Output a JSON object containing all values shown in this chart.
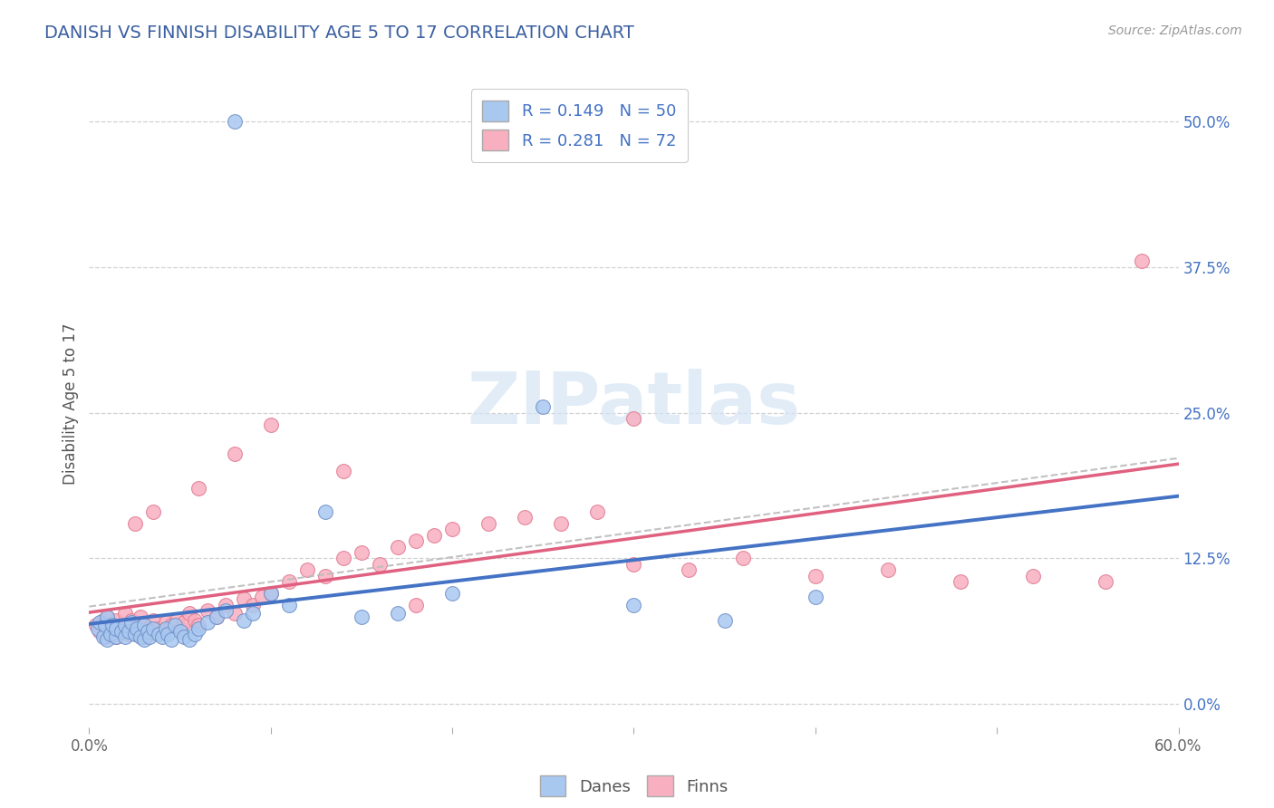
{
  "title": "DANISH VS FINNISH DISABILITY AGE 5 TO 17 CORRELATION CHART",
  "source": "Source: ZipAtlas.com",
  "ylabel": "Disability Age 5 to 17",
  "xlim": [
    0.0,
    0.6
  ],
  "ylim": [
    -0.02,
    0.535
  ],
  "xtick_values": [
    0.0,
    0.1,
    0.2,
    0.3,
    0.4,
    0.5,
    0.6
  ],
  "xticklabels": [
    "0.0%",
    "",
    "",
    "",
    "",
    "",
    "60.0%"
  ],
  "ytick_right_values": [
    0.0,
    0.125,
    0.25,
    0.375,
    0.5
  ],
  "ytick_right_labels": [
    "0.0%",
    "12.5%",
    "25.0%",
    "37.5%",
    "50.0%"
  ],
  "grid_color": "#cccccc",
  "bg_color": "#ffffff",
  "title_color": "#3a5fa0",
  "title_fontsize": 14,
  "danes_color": "#a8c8f0",
  "danes_edge": "#7090c8",
  "finns_color": "#f8b0c0",
  "finns_edge": "#e07890",
  "danes_R": 0.149,
  "danes_N": 50,
  "finns_R": 0.281,
  "finns_N": 72,
  "danes_line_color": "#4472c4",
  "finns_line_color": "#e06080",
  "watermark_color": "#d5e5f5",
  "danes_x": [
    0.005,
    0.006,
    0.008,
    0.009,
    0.01,
    0.01,
    0.012,
    0.013,
    0.015,
    0.015,
    0.018,
    0.02,
    0.02,
    0.022,
    0.023,
    0.025,
    0.026,
    0.028,
    0.03,
    0.03,
    0.032,
    0.033,
    0.035,
    0.038,
    0.04,
    0.042,
    0.043,
    0.045,
    0.047,
    0.05,
    0.052,
    0.055,
    0.058,
    0.06,
    0.065,
    0.07,
    0.075,
    0.08,
    0.085,
    0.09,
    0.1,
    0.11,
    0.13,
    0.15,
    0.17,
    0.2,
    0.25,
    0.3,
    0.35,
    0.4
  ],
  "danes_y": [
    0.065,
    0.07,
    0.058,
    0.068,
    0.055,
    0.075,
    0.06,
    0.068,
    0.058,
    0.065,
    0.062,
    0.058,
    0.068,
    0.062,
    0.07,
    0.06,
    0.065,
    0.058,
    0.055,
    0.068,
    0.062,
    0.058,
    0.065,
    0.06,
    0.058,
    0.065,
    0.06,
    0.055,
    0.068,
    0.062,
    0.058,
    0.055,
    0.06,
    0.065,
    0.07,
    0.075,
    0.08,
    0.5,
    0.072,
    0.078,
    0.095,
    0.085,
    0.165,
    0.075,
    0.078,
    0.095,
    0.255,
    0.085,
    0.072,
    0.092
  ],
  "finns_x": [
    0.004,
    0.006,
    0.008,
    0.009,
    0.01,
    0.01,
    0.012,
    0.013,
    0.015,
    0.015,
    0.018,
    0.02,
    0.02,
    0.022,
    0.023,
    0.025,
    0.026,
    0.028,
    0.03,
    0.03,
    0.032,
    0.033,
    0.035,
    0.038,
    0.04,
    0.042,
    0.045,
    0.048,
    0.05,
    0.052,
    0.055,
    0.058,
    0.06,
    0.065,
    0.07,
    0.075,
    0.08,
    0.085,
    0.09,
    0.095,
    0.1,
    0.11,
    0.12,
    0.13,
    0.14,
    0.15,
    0.16,
    0.17,
    0.18,
    0.19,
    0.2,
    0.22,
    0.24,
    0.26,
    0.28,
    0.3,
    0.33,
    0.36,
    0.4,
    0.44,
    0.48,
    0.52,
    0.56,
    0.58,
    0.3,
    0.14,
    0.1,
    0.08,
    0.06,
    0.035,
    0.025,
    0.18
  ],
  "finns_y": [
    0.068,
    0.062,
    0.072,
    0.058,
    0.065,
    0.075,
    0.06,
    0.068,
    0.058,
    0.072,
    0.062,
    0.068,
    0.078,
    0.06,
    0.072,
    0.065,
    0.06,
    0.075,
    0.058,
    0.068,
    0.065,
    0.06,
    0.072,
    0.065,
    0.062,
    0.07,
    0.068,
    0.072,
    0.065,
    0.07,
    0.078,
    0.072,
    0.068,
    0.08,
    0.075,
    0.085,
    0.078,
    0.09,
    0.085,
    0.092,
    0.095,
    0.105,
    0.115,
    0.11,
    0.125,
    0.13,
    0.12,
    0.135,
    0.14,
    0.145,
    0.15,
    0.155,
    0.16,
    0.155,
    0.165,
    0.12,
    0.115,
    0.125,
    0.11,
    0.115,
    0.105,
    0.11,
    0.105,
    0.38,
    0.245,
    0.2,
    0.24,
    0.215,
    0.185,
    0.165,
    0.155,
    0.085
  ]
}
